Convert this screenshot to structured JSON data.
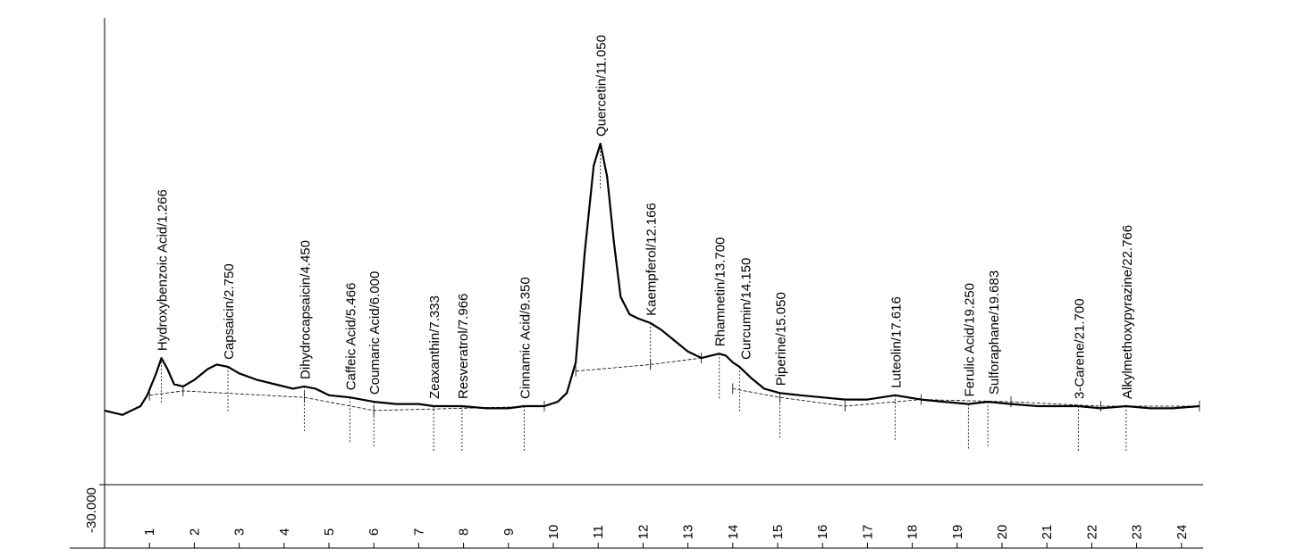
{
  "chart_data": {
    "type": "line",
    "title": "",
    "xlabel": "",
    "ylabel": "",
    "xlim": [
      0,
      24.4
    ],
    "x_ticks": [
      "1",
      "2",
      "3",
      "4",
      "5",
      "6",
      "7",
      "8",
      "9",
      "10",
      "11",
      "12",
      "13",
      "14",
      "15",
      "16",
      "17",
      "18",
      "19",
      "20",
      "21",
      "22",
      "23",
      "24"
    ],
    "y_tick_label": "-30.000",
    "y_tick_value": -30,
    "ylim": [
      -33,
      190
    ],
    "series": [
      {
        "x": [
          0,
          0.2,
          0.4,
          0.6,
          0.8,
          0.95,
          1.05,
          1.15,
          1.266,
          1.4,
          1.55,
          1.75,
          2.0,
          2.3,
          2.5,
          2.75,
          3.0,
          3.4,
          3.8,
          4.2,
          4.45,
          4.7,
          5.0,
          5.466,
          6.0,
          6.5,
          7.0,
          7.333,
          7.966,
          8.5,
          9.0,
          9.35,
          9.8,
          10.1,
          10.3,
          10.5,
          10.7,
          10.9,
          11.05,
          11.2,
          11.35,
          11.5,
          11.7,
          11.9,
          12.166,
          12.4,
          12.7,
          13.0,
          13.3,
          13.5,
          13.7,
          13.85,
          14.0,
          14.15,
          14.4,
          14.7,
          15.05,
          15.5,
          16.0,
          16.5,
          17.0,
          17.616,
          18.2,
          18.7,
          19.25,
          19.683,
          20.2,
          20.8,
          21.2,
          21.7,
          22.2,
          22.766,
          23.3,
          23.8,
          24.4
        ],
        "y": [
          -2,
          -3,
          -4,
          -2,
          0,
          5,
          10,
          15,
          22,
          17,
          10,
          9,
          12,
          17,
          19,
          18,
          15,
          12,
          10,
          8,
          9,
          8,
          5,
          4,
          2,
          1,
          1,
          0,
          0,
          -1,
          -1,
          0,
          0,
          2,
          6,
          20,
          70,
          110,
          120,
          105,
          75,
          50,
          42,
          40,
          38,
          35,
          30,
          25,
          22,
          23,
          24,
          23,
          20,
          18,
          13,
          8,
          6,
          5,
          4,
          3,
          3,
          5,
          3,
          2,
          1,
          2,
          1,
          0,
          0,
          0,
          -1,
          0,
          -1,
          -1,
          0
        ]
      }
    ],
    "peaks": [
      {
        "label": "Hydroxybenzoic Acid/1.266",
        "rt": 1.266,
        "height": 22
      },
      {
        "label": "Capsaicin/2.750",
        "rt": 2.75,
        "height": 18
      },
      {
        "label": "Dihydrocapsaicin/4.450",
        "rt": 4.45,
        "height": 9
      },
      {
        "label": "Caffeic Acid/5.466",
        "rt": 5.466,
        "height": 4
      },
      {
        "label": "Coumaric Acid/6.000",
        "rt": 6.0,
        "height": 2
      },
      {
        "label": "Zeaxanthin/7.333",
        "rt": 7.333,
        "height": 0
      },
      {
        "label": "Resveratrol/7.966",
        "rt": 7.966,
        "height": 0
      },
      {
        "label": "Cinnamic Acid/9.350",
        "rt": 9.35,
        "height": 0
      },
      {
        "label": "Quercetin/11.050",
        "rt": 11.05,
        "height": 120
      },
      {
        "label": "Kaempferol/12.166",
        "rt": 12.166,
        "height": 38
      },
      {
        "label": "Rhamnetin/13.700",
        "rt": 13.7,
        "height": 24
      },
      {
        "label": "Curcumin/14.150",
        "rt": 14.15,
        "height": 18
      },
      {
        "label": "Piperine/15.050",
        "rt": 15.05,
        "height": 6
      },
      {
        "label": "Luteolin/17.616",
        "rt": 17.616,
        "height": 5
      },
      {
        "label": "Ferulic Acid/19.250",
        "rt": 19.25,
        "height": 1
      },
      {
        "label": "Sulforaphane/19.683",
        "rt": 19.683,
        "height": 2
      },
      {
        "label": "3-Carene/21.700",
        "rt": 21.7,
        "height": 0
      },
      {
        "label": "Alkylmethoxypyrazine/22.766",
        "rt": 22.766,
        "height": 0
      }
    ],
    "baseline_segments": [
      {
        "x": [
          1.0,
          1.75,
          4.45,
          6.0,
          9.8
        ],
        "y": [
          5,
          7,
          4,
          -2,
          0
        ]
      },
      {
        "x": [
          10.5,
          12.166,
          13.3
        ],
        "y": [
          16,
          19,
          22
        ]
      },
      {
        "x": [
          14.0,
          15.05,
          16.5,
          18.2,
          20.2,
          22.2,
          24.4
        ],
        "y": [
          8,
          4,
          0,
          3,
          2,
          0,
          0
        ]
      }
    ],
    "grid": false,
    "legend": "none"
  }
}
